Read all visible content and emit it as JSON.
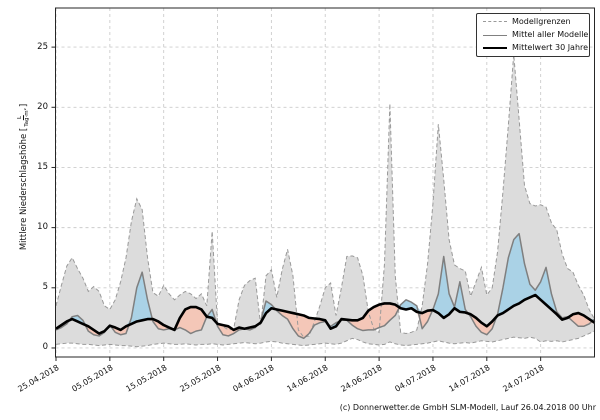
{
  "chart": {
    "caption": "(c) Donnerwetter.de GmbH SLM-Modell, Lauf 26.04.2018 00 Uhr",
    "ylabel": {
      "prefix": "Mittlere Niederschlagshöhe [",
      "frac_num": "L",
      "frac_den": "Tag·m²",
      "suffix": "]"
    },
    "legend": {
      "items": [
        {
          "label": "Modellgrenzen",
          "style": "dashed-gray"
        },
        {
          "label": "Mittel aller Modelle",
          "style": "solid-gray"
        },
        {
          "label": "Mittelwert 30 Jahre",
          "style": "solid-black"
        }
      ]
    }
  },
  "chart_data": {
    "type": "area",
    "title": "",
    "xlabel": "",
    "x_unit": "daily values, dates dd.mm.yyyy",
    "x_tick_labels": [
      "25.04.2018",
      "05.05.2018",
      "15.05.2018",
      "25.05.2018",
      "04.06.2018",
      "14.06.2018",
      "24.06.2018",
      "04.07.2018",
      "14.07.2018",
      "24.07.2018"
    ],
    "x_tick_days": [
      0,
      10,
      20,
      30,
      40,
      50,
      60,
      70,
      80,
      90
    ],
    "y_ticks": [
      0,
      5,
      10,
      15,
      20,
      25
    ],
    "ylim": [
      -0.75,
      28.25
    ],
    "grid": true,
    "legend_position": "upper right",
    "colors": {
      "band": "#dcdcdc",
      "band_edge": "#999999",
      "above": "#aad2e6",
      "below": "#f4c7b8",
      "mean_line": "#7f7f7f",
      "mean30_line": "#000000",
      "grid": "#cccccc"
    },
    "series": [
      {
        "name": "Modellgrenzen (oben)",
        "style": "dashed",
        "color": "#999999",
        "values": [
          3.5,
          5.2,
          6.8,
          7.5,
          6.6,
          5.8,
          4.7,
          5.1,
          4.7,
          3.5,
          3.2,
          4.0,
          5.5,
          7.5,
          10.5,
          12.4,
          11.5,
          7.5,
          4.6,
          4.3,
          5.2,
          4.5,
          4.0,
          4.4,
          4.7,
          4.5,
          4.1,
          4.5,
          3.5,
          9.7,
          2.0,
          1.8,
          1.5,
          1.6,
          4.0,
          5.2,
          5.6,
          5.8,
          1.9,
          6.0,
          6.5,
          4.2,
          6.5,
          8.2,
          6.0,
          1.5,
          0.9,
          1.0,
          2.2,
          3.5,
          5.0,
          5.4,
          2.7,
          5.0,
          7.6,
          7.65,
          7.5,
          6.0,
          3.0,
          1.6,
          1.3,
          7.0,
          20.3,
          6.0,
          1.3,
          1.2,
          1.3,
          1.5,
          3.5,
          7.0,
          12.0,
          18.6,
          14.0,
          9.0,
          6.9,
          6.6,
          6.4,
          4.3,
          5.5,
          6.7,
          4.4,
          5.0,
          8.0,
          13.0,
          18.5,
          24.4,
          19.0,
          13.5,
          12.0,
          11.8,
          11.9,
          11.7,
          10.4,
          9.8,
          7.8,
          6.6,
          6.3,
          5.2,
          4.4,
          3.2,
          2.4
        ]
      },
      {
        "name": "Modellgrenzen (unten)",
        "style": "dashed",
        "color": "#999999",
        "values": [
          0.3,
          0.35,
          0.4,
          0.4,
          0.35,
          0.3,
          0.3,
          0.25,
          0.2,
          0.25,
          0.3,
          0.25,
          0.2,
          0.2,
          0.15,
          0.1,
          0.15,
          0.2,
          0.3,
          0.35,
          0.4,
          0.35,
          0.3,
          0.3,
          0.35,
          0.3,
          0.25,
          0.3,
          0.3,
          0.35,
          0.3,
          0.25,
          0.3,
          0.35,
          0.4,
          0.45,
          0.4,
          0.35,
          0.4,
          0.5,
          0.55,
          0.5,
          0.4,
          0.35,
          0.3,
          0.25,
          0.2,
          0.25,
          0.3,
          0.35,
          0.4,
          0.35,
          0.3,
          0.4,
          0.6,
          0.8,
          0.7,
          0.5,
          0.35,
          0.3,
          0.25,
          0.3,
          0.5,
          0.35,
          0.25,
          0.2,
          0.25,
          0.3,
          0.35,
          0.4,
          0.5,
          0.6,
          0.5,
          0.4,
          0.35,
          0.4,
          0.45,
          0.4,
          0.5,
          0.6,
          0.55,
          0.5,
          0.6,
          0.7,
          0.8,
          0.9,
          0.85,
          0.8,
          0.9,
          0.8,
          0.5,
          0.6,
          0.55,
          0.6,
          0.5,
          0.6,
          0.7,
          0.8,
          1.0,
          1.2,
          1.4
        ]
      },
      {
        "name": "Mittel aller Modelle",
        "style": "solid",
        "color": "#7f7f7f",
        "values": [
          1.5,
          1.7,
          2.0,
          2.6,
          2.7,
          2.3,
          1.4,
          1.1,
          1.0,
          1.3,
          1.9,
          1.3,
          1.1,
          1.2,
          2.5,
          5.0,
          6.3,
          4.0,
          2.2,
          1.6,
          1.5,
          1.6,
          1.5,
          1.7,
          1.5,
          1.2,
          1.4,
          1.5,
          2.6,
          3.2,
          1.8,
          1.1,
          1.0,
          1.2,
          1.5,
          1.6,
          1.5,
          1.7,
          2.2,
          3.9,
          3.6,
          3.1,
          2.7,
          2.4,
          1.6,
          1.0,
          0.8,
          1.2,
          1.9,
          2.1,
          2.2,
          1.8,
          2.1,
          2.3,
          2.3,
          1.9,
          1.6,
          1.45,
          1.5,
          1.5,
          1.7,
          1.85,
          2.3,
          2.7,
          3.6,
          4.0,
          3.8,
          3.5,
          1.6,
          2.2,
          3.2,
          4.5,
          7.6,
          4.5,
          3.4,
          5.5,
          3.2,
          2.6,
          1.8,
          1.3,
          1.1,
          1.6,
          2.8,
          5.0,
          7.5,
          9.0,
          9.5,
          7.0,
          5.3,
          4.8,
          5.5,
          6.7,
          4.5,
          3.0,
          2.5,
          2.6,
          2.2,
          1.8,
          1.8,
          2.0,
          2.4
        ]
      },
      {
        "name": "Mittelwert 30 Jahre",
        "style": "solid-thick",
        "color": "#000000",
        "values": [
          1.6,
          1.9,
          2.2,
          2.4,
          2.2,
          2.0,
          1.8,
          1.5,
          1.2,
          1.4,
          1.85,
          1.7,
          1.5,
          1.8,
          2.0,
          2.2,
          2.3,
          2.4,
          2.4,
          2.2,
          1.9,
          1.7,
          1.5,
          2.5,
          3.2,
          3.4,
          3.4,
          3.2,
          2.6,
          2.5,
          2.0,
          1.9,
          1.8,
          1.5,
          1.7,
          1.6,
          1.7,
          1.8,
          2.1,
          2.9,
          3.3,
          3.2,
          3.1,
          3.0,
          2.9,
          2.8,
          2.7,
          2.5,
          2.45,
          2.4,
          2.3,
          1.6,
          1.8,
          2.4,
          2.35,
          2.3,
          2.3,
          2.5,
          3.1,
          3.4,
          3.6,
          3.7,
          3.7,
          3.6,
          3.3,
          3.2,
          3.3,
          3.0,
          2.9,
          3.1,
          3.15,
          2.9,
          2.5,
          2.8,
          3.3,
          3.0,
          2.95,
          2.8,
          2.5,
          2.1,
          1.8,
          2.2,
          2.7,
          2.9,
          3.2,
          3.5,
          3.7,
          4.0,
          4.2,
          4.4,
          4.0,
          3.6,
          3.2,
          2.8,
          2.35,
          2.5,
          2.8,
          2.9,
          2.7,
          2.4,
          2.1
        ]
      }
    ],
    "fills": [
      {
        "name": "Modellgrenzen-Band",
        "between": [
          "Modellgrenzen (oben)",
          "Modellgrenzen (unten)"
        ],
        "color": "#dcdcdc"
      },
      {
        "name": "Modelle über 30-Jahre-Mittel",
        "between": [
          "Mittel aller Modelle",
          "Mittelwert 30 Jahre"
        ],
        "where": "above",
        "color": "#aad2e6"
      },
      {
        "name": "Modelle unter 30-Jahre-Mittel",
        "between": [
          "Mittel aller Modelle",
          "Mittelwert 30 Jahre"
        ],
        "where": "below",
        "color": "#f4c7b8"
      }
    ]
  }
}
